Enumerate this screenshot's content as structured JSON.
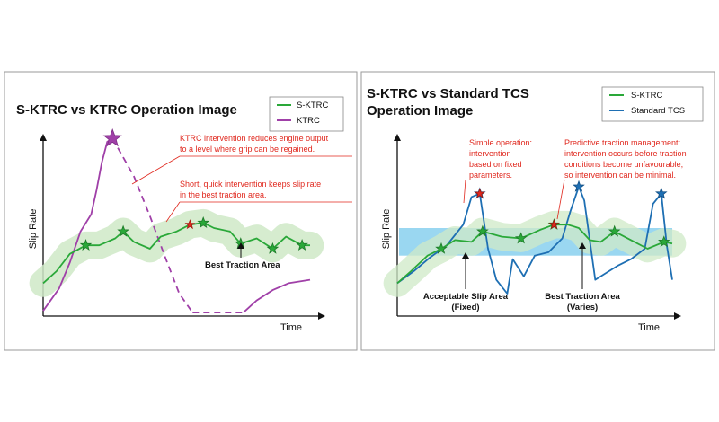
{
  "colors": {
    "s_ktrc": "#2aa839",
    "ktrc": "#a040a8",
    "standard_tcs": "#1e6fb3",
    "annotation": "#e0281e",
    "band_green": "#cfe9c7",
    "traction_area": "#8fd3f0",
    "border": "#9a9a9a"
  },
  "icons": [
    "star-marker-icon",
    "arrow-icon"
  ],
  "panels": [
    {
      "title_lines": [
        "S-KTRC vs KTRC Operation Image"
      ],
      "ylabel": "Slip Rate",
      "xlabel": "Time",
      "legend": [
        "S-KTRC",
        "KTRC"
      ],
      "annotations": {
        "ktrc_note": [
          "KTRC intervention reduces engine output",
          "to a level where grip can be regained."
        ],
        "s_ktrc_note": [
          "Short, quick intervention keeps slip rate",
          "in the best traction area."
        ],
        "best_traction": "Best Traction Area"
      }
    },
    {
      "title_lines": [
        "S-KTRC vs Standard TCS",
        "Operation Image"
      ],
      "ylabel": "Slip Rate",
      "xlabel": "Time",
      "legend": [
        "S-KTRC",
        "Standard TCS"
      ],
      "annotations": {
        "simple_op": [
          "Simple operation:",
          "intervention",
          "based on fixed",
          "parameters."
        ],
        "predictive": [
          "Predictive traction management:",
          "intervention occurs before traction",
          "conditions become unfavourable,",
          "so intervention can be minimal."
        ],
        "acceptable_slip": [
          "Acceptable Slip Area",
          "(Fixed)"
        ],
        "best_traction": [
          "Best Traction Area",
          "(Varies)"
        ]
      }
    }
  ],
  "chart_data": [
    {
      "type": "line",
      "title": "S-KTRC vs KTRC Operation Image",
      "xlabel": "Time",
      "ylabel": "Slip Rate",
      "xlim": [
        0,
        100
      ],
      "ylim": [
        0,
        100
      ],
      "series": [
        {
          "name": "S-KTRC",
          "x": [
            0,
            5,
            10,
            16,
            21,
            27,
            30,
            34,
            40,
            44,
            50,
            55,
            60,
            64,
            70,
            74,
            80,
            86,
            91,
            97,
            100
          ],
          "y": [
            18,
            25,
            35,
            40,
            40,
            44,
            48,
            42,
            38,
            45,
            48,
            52,
            53,
            50,
            48,
            41,
            44,
            38,
            45,
            40,
            40
          ],
          "marker_points": [
            [
              16,
              40
            ],
            [
              30,
              48
            ],
            [
              60,
              53
            ],
            [
              74,
              41
            ],
            [
              86,
              38
            ],
            [
              97,
              40
            ]
          ],
          "band_width": 8
        },
        {
          "name": "KTRC",
          "x": [
            0,
            6,
            10,
            14,
            18,
            20,
            22,
            24,
            26
          ],
          "y": [
            2,
            15,
            30,
            48,
            58,
            72,
            88,
            100,
            102
          ],
          "peak_point": [
            26,
            102
          ],
          "dash_x": [
            26,
            34,
            40,
            46,
            51,
            56
          ],
          "dash_y": [
            102,
            80,
            57,
            32,
            12,
            1
          ],
          "dash_tail_x": [
            56,
            65,
            75
          ],
          "dash_tail_y": [
            1,
            1,
            1
          ],
          "recovery_x": [
            75,
            80,
            86,
            92,
            100
          ],
          "recovery_y": [
            1,
            8,
            14,
            18,
            20
          ]
        }
      ]
    },
    {
      "type": "line",
      "title": "S-KTRC vs Standard TCS Operation Image",
      "xlabel": "Time",
      "ylabel": "Slip Rate",
      "xlim": [
        0,
        100
      ],
      "ylim": [
        0,
        100
      ],
      "traction_band": [
        34,
        50
      ],
      "series": [
        {
          "name": "S-KTRC",
          "x": [
            0,
            5,
            11,
            16,
            21,
            27,
            31,
            38,
            45,
            52,
            57,
            62,
            66,
            70,
            74,
            79,
            85,
            91,
            97,
            100
          ],
          "y": [
            18,
            25,
            34,
            38,
            43,
            42,
            48,
            45,
            44,
            49,
            52,
            52,
            50,
            43,
            42,
            48,
            43,
            38,
            42,
            41
          ],
          "marker_points": [
            [
              16,
              38
            ],
            [
              31,
              48
            ],
            [
              45,
              44
            ],
            [
              57,
              52
            ],
            [
              79,
              48
            ],
            [
              97,
              42
            ]
          ],
          "band_width": 8
        },
        {
          "name": "Standard TCS",
          "x": [
            0,
            6,
            12,
            18,
            24,
            27,
            30,
            33,
            36,
            40,
            42,
            46,
            50,
            55,
            60,
            63,
            66,
            68,
            72,
            76,
            80,
            85,
            90,
            93,
            96,
            98,
            100
          ],
          "y": [
            18,
            25,
            33,
            40,
            52,
            68,
            70,
            38,
            20,
            12,
            32,
            22,
            34,
            36,
            44,
            60,
            74,
            66,
            20,
            24,
            28,
            32,
            38,
            64,
            70,
            40,
            20
          ],
          "marker_points": [
            [
              30,
              70
            ],
            [
              66,
              74
            ],
            [
              96,
              70
            ]
          ]
        }
      ]
    }
  ]
}
